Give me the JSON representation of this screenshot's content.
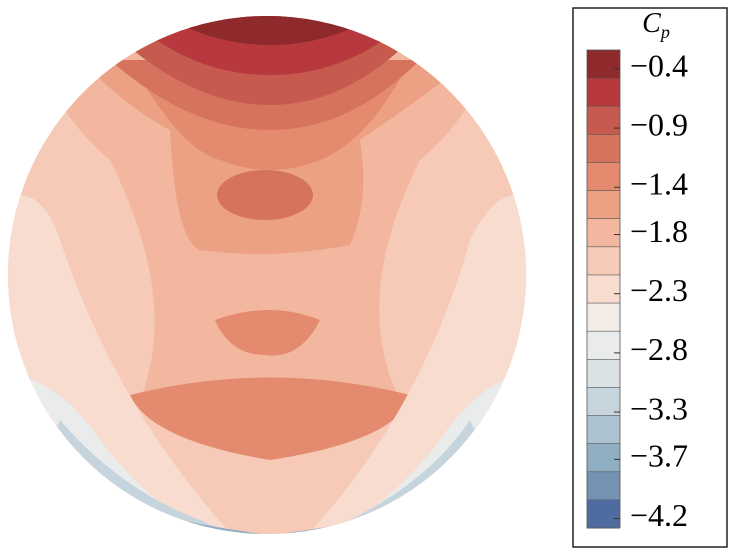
{
  "chart_data": {
    "type": "contour",
    "colorbar": {
      "title": "C",
      "title_subscript": "p",
      "clim": [
        -4.28,
        -0.24
      ],
      "colors": [
        "#8e2a2c",
        "#b7393d",
        "#c65a4f",
        "#d6735e",
        "#e38a6f",
        "#eca184",
        "#f2b79e",
        "#f6cab7",
        "#f7dccf",
        "#f3ebe6",
        "#eaeceb",
        "#dbe2e5",
        "#c6d5dd",
        "#adc3d1",
        "#90aec2",
        "#7493b3",
        "#4f6ca0"
      ],
      "ticks": [
        {
          "value": -0.4,
          "label": "−0.4"
        },
        {
          "value": -0.9,
          "label": "−0.9"
        },
        {
          "value": -1.4,
          "label": "−1.4"
        },
        {
          "value": -1.8,
          "label": "−1.8"
        },
        {
          "value": -2.3,
          "label": "−2.3"
        },
        {
          "value": -2.8,
          "label": "−2.8"
        },
        {
          "value": -3.3,
          "label": "−3.3"
        },
        {
          "value": -3.7,
          "label": "−3.7"
        },
        {
          "value": -4.2,
          "label": "−4.2"
        }
      ]
    }
  }
}
